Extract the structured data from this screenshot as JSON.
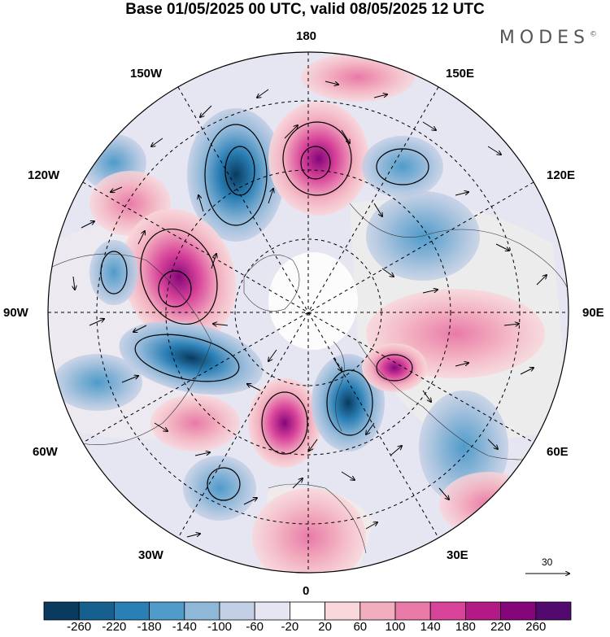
{
  "title": "Base 01/05/2025 00 UTC, valid 08/05/2025 12 UTC",
  "brand": {
    "name": "MODES",
    "mark": "©"
  },
  "map": {
    "projection": "north-polar-stereographic",
    "longitude_labels": [
      {
        "id": "180",
        "text": "180"
      },
      {
        "id": "150w",
        "text": "150W"
      },
      {
        "id": "150e",
        "text": "150E"
      },
      {
        "id": "120w",
        "text": "120W"
      },
      {
        "id": "120e",
        "text": "120E"
      },
      {
        "id": "90w",
        "text": "90W"
      },
      {
        "id": "90e",
        "text": "90E"
      },
      {
        "id": "60w",
        "text": "60W"
      },
      {
        "id": "60e",
        "text": "60E"
      },
      {
        "id": "30w",
        "text": "30W"
      },
      {
        "id": "30e",
        "text": "30E"
      },
      {
        "id": "0",
        "text": "0"
      }
    ],
    "reference_vector": {
      "value": "30"
    }
  },
  "colorbar": {
    "ticks": [
      "-260",
      "-220",
      "-180",
      "-140",
      "-100",
      "-60",
      "-20",
      "20",
      "60",
      "100",
      "140",
      "180",
      "220",
      "260"
    ],
    "colors": [
      "#0a3a5e",
      "#15608f",
      "#2a7fb5",
      "#4f9bca",
      "#8fb7d8",
      "#c3cfe5",
      "#e6e6f2",
      "#ffffff",
      "#f9d6da",
      "#f2aebf",
      "#e87aa8",
      "#d8449a",
      "#b31a86",
      "#84067a",
      "#520a6e"
    ]
  },
  "colors": {
    "land": "#ececec",
    "grid": "#000000",
    "contour": "#000000"
  }
}
